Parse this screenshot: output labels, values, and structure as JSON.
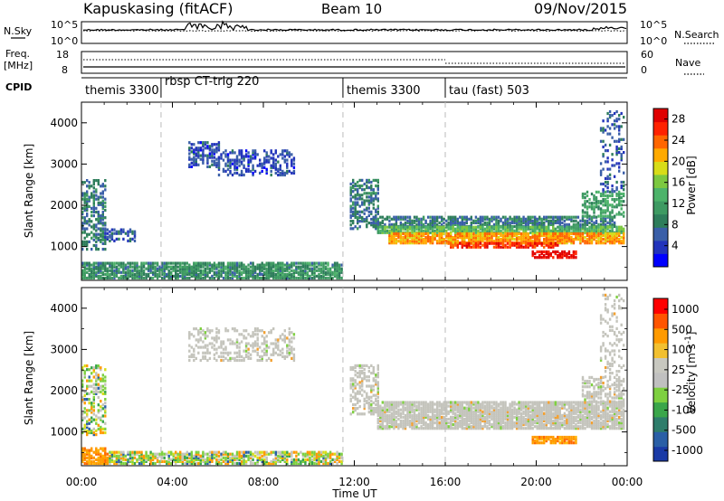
{
  "header": {
    "title": "Kapuskasing (fitACF)",
    "beam": "Beam 10",
    "date": "09/Nov/2015"
  },
  "noise_panel": {
    "left_label": "N.Sky",
    "right_label": "N.Search",
    "left_ticks": [
      "10^5",
      "10^0"
    ],
    "right_ticks": [
      "10^5",
      "10^0"
    ]
  },
  "freq_panel": {
    "left_label": "Freq.",
    "left_unit": "[MHz]",
    "left_ticks": [
      "18",
      "8"
    ],
    "right_label": "Nave",
    "right_ticks": [
      "60",
      "0"
    ]
  },
  "cpid_panel": {
    "label": "CPID",
    "programs": [
      {
        "name": "themis 3300",
        "start_h": 0.0
      },
      {
        "name": "rbsp CT-trig 220",
        "start_h": 3.5
      },
      {
        "name": "themis 3300",
        "start_h": 11.5
      },
      {
        "name": "tau (fast) 503",
        "start_h": 16.0
      }
    ]
  },
  "colors": {
    "power_scale": [
      "#0000ff",
      "#2233bb",
      "#3a5fa8",
      "#2e7d5b",
      "#3e9a62",
      "#4db36a",
      "#7cc840",
      "#d8dc18",
      "#ffaa00",
      "#ff6600",
      "#ff2200",
      "#e00000"
    ],
    "velocity_scale": [
      "#ff0000",
      "#ff5500",
      "#ff9a00",
      "#f2c030",
      "#c8c8c0",
      "#c0c0c0",
      "#7ed040",
      "#3aa64a",
      "#2e7d6b",
      "#2a5fa6",
      "#1a3aa6"
    ]
  },
  "chart_data": [
    {
      "type": "heatmap",
      "panel": "power",
      "ylabel": "Slant Range [km]",
      "x_ticks": [
        "00:00",
        "04:00",
        "08:00",
        "12:00",
        "16:00",
        "20:00",
        "00:00"
      ],
      "x_range_h": [
        0,
        24
      ],
      "y_ticks": [
        1000,
        2000,
        3000,
        4000
      ],
      "ylim": [
        180,
        4500
      ],
      "colorbar": {
        "label": "Power [dB]",
        "ticks": [
          "4",
          "8",
          "12",
          "16",
          "20",
          "24",
          "28"
        ],
        "range": [
          0,
          30
        ]
      },
      "regions": [
        {
          "h0": 0.0,
          "h1": 11.4,
          "r0": 200,
          "r1": 600,
          "v": 10,
          "d": 0.8
        },
        {
          "h0": 0.0,
          "h1": 1.0,
          "r0": 900,
          "r1": 2600,
          "v": 8,
          "d": 0.5
        },
        {
          "h0": 1.0,
          "h1": 2.5,
          "r0": 1100,
          "r1": 1400,
          "v": 6,
          "d": 0.45
        },
        {
          "h0": 4.7,
          "h1": 6.0,
          "r0": 2900,
          "r1": 3500,
          "v": 5,
          "d": 0.55
        },
        {
          "h0": 6.0,
          "h1": 9.3,
          "r0": 2700,
          "r1": 3300,
          "v": 5,
          "d": 0.4
        },
        {
          "h0": 11.8,
          "h1": 13.0,
          "r0": 1400,
          "r1": 2600,
          "v": 8,
          "d": 0.5
        },
        {
          "h0": 12.8,
          "h1": 23.5,
          "r0": 1450,
          "r1": 1700,
          "v": 8,
          "d": 0.7
        },
        {
          "h0": 13.0,
          "h1": 23.9,
          "r0": 1300,
          "r1": 1450,
          "v": 14,
          "d": 0.85
        },
        {
          "h0": 13.5,
          "h1": 23.9,
          "r0": 1050,
          "r1": 1300,
          "v": 22,
          "d": 0.85
        },
        {
          "h0": 16.0,
          "h1": 21.0,
          "r0": 950,
          "r1": 1060,
          "v": 26,
          "d": 0.7
        },
        {
          "h0": 19.8,
          "h1": 21.8,
          "r0": 700,
          "r1": 870,
          "v": 29,
          "d": 0.75
        },
        {
          "h0": 22.0,
          "h1": 23.9,
          "r0": 1700,
          "r1": 2300,
          "v": 12,
          "d": 0.45
        },
        {
          "h0": 22.8,
          "h1": 23.9,
          "r0": 2300,
          "r1": 4300,
          "v": 6,
          "d": 0.2
        }
      ]
    },
    {
      "type": "heatmap",
      "panel": "velocity",
      "ylabel": "Slant Range [km]",
      "xlabel": "Time UT",
      "x_ticks": [
        "00:00",
        "04:00",
        "08:00",
        "12:00",
        "16:00",
        "20:00",
        "00:00"
      ],
      "x_range_h": [
        0,
        24
      ],
      "y_ticks": [
        1000,
        2000,
        3000,
        4000
      ],
      "ylim": [
        180,
        4500
      ],
      "colorbar": {
        "label": "Velocity [m s^-1]",
        "ticks": [
          "1000",
          "500",
          "100",
          "25",
          "-25",
          "-100",
          "-500",
          "-1000"
        ]
      },
      "regions": [
        {
          "h0": 0.0,
          "h1": 1.2,
          "r0": 200,
          "r1": 600,
          "v": "neg_orange",
          "d": 0.8
        },
        {
          "h0": 1.2,
          "h1": 11.4,
          "r0": 200,
          "r1": 500,
          "v": "mixed",
          "d": 0.7
        },
        {
          "h0": 0.0,
          "h1": 1.0,
          "r0": 900,
          "r1": 2600,
          "v": "mixed",
          "d": 0.4
        },
        {
          "h0": 4.7,
          "h1": 9.3,
          "r0": 2700,
          "r1": 3500,
          "v": "grey",
          "d": 0.35
        },
        {
          "h0": 11.8,
          "h1": 13.0,
          "r0": 1400,
          "r1": 2600,
          "v": "grey",
          "d": 0.5
        },
        {
          "h0": 13.0,
          "h1": 23.9,
          "r0": 1050,
          "r1": 1700,
          "v": "grey",
          "d": 0.85
        },
        {
          "h0": 19.8,
          "h1": 21.8,
          "r0": 700,
          "r1": 870,
          "v": "neg_orange",
          "d": 0.8
        },
        {
          "h0": 22.0,
          "h1": 23.9,
          "r0": 1700,
          "r1": 2300,
          "v": "grey",
          "d": 0.45
        },
        {
          "h0": 22.8,
          "h1": 23.9,
          "r0": 2300,
          "r1": 4300,
          "v": "grey",
          "d": 0.2
        }
      ]
    }
  ]
}
